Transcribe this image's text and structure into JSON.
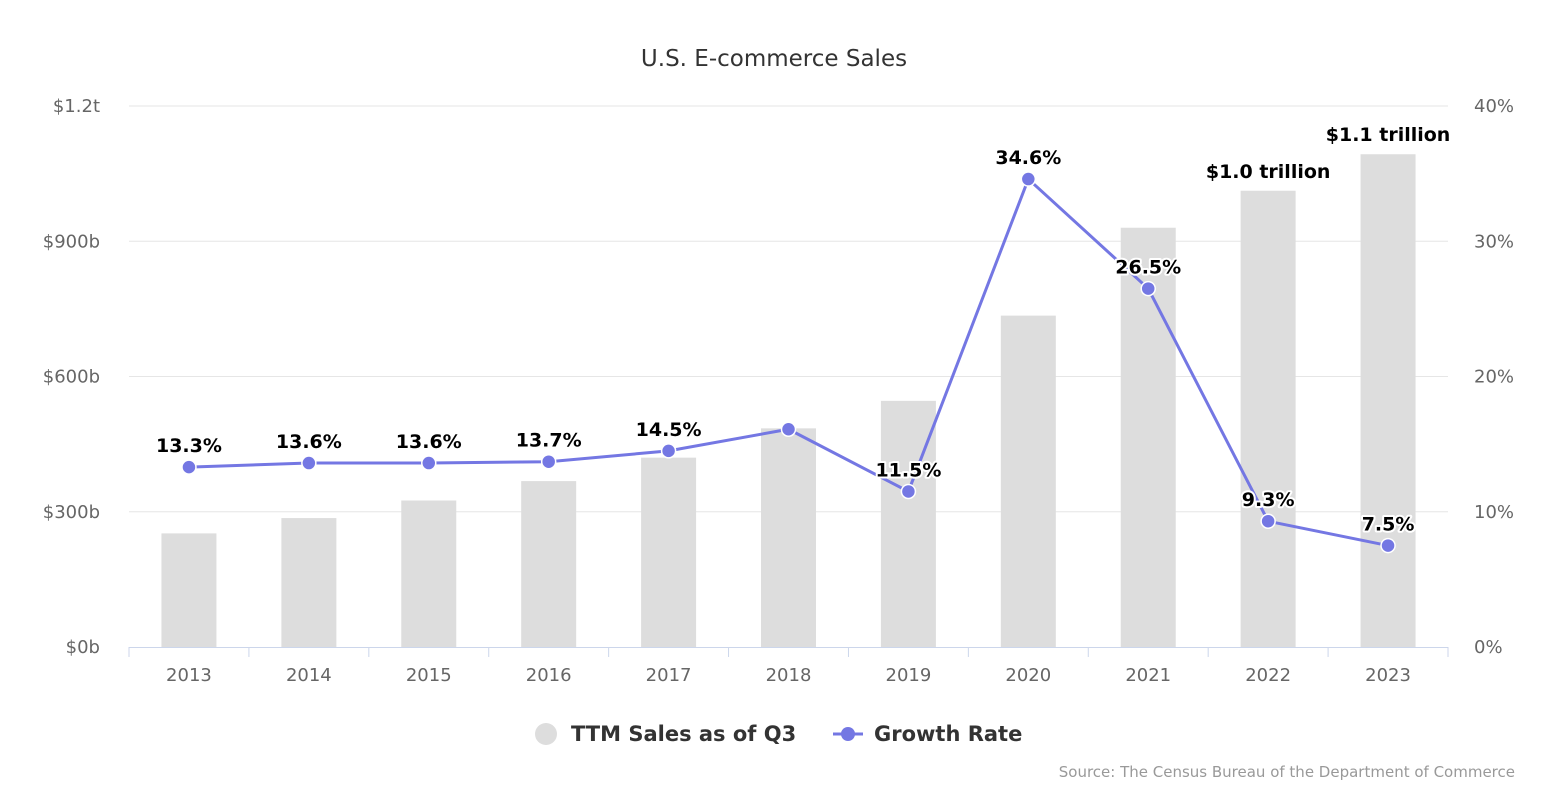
{
  "chart_data": {
    "type": "bar",
    "title": "U.S. E-commerce Sales",
    "categories": [
      "2013",
      "2014",
      "2015",
      "2016",
      "2017",
      "2018",
      "2019",
      "2020",
      "2021",
      "2022",
      "2023"
    ],
    "y_left": {
      "min": 0,
      "max": 1200,
      "ticks": [
        0,
        300,
        600,
        900,
        1200
      ],
      "tick_labels": [
        "$0b",
        "$300b",
        "$600b",
        "$900b",
        "$1.2t"
      ],
      "unit": "billion USD"
    },
    "y_right": {
      "min": 0,
      "max": 40,
      "ticks": [
        0,
        10,
        20,
        30,
        40
      ],
      "tick_labels": [
        "0%",
        "10%",
        "20%",
        "30%",
        "40%"
      ],
      "unit": "percent"
    },
    "grid": true,
    "legend_position": "bottom-center",
    "series": [
      {
        "name": "TTM Sales as of Q3",
        "type": "bar",
        "axis": "left",
        "color": "#dddddd",
        "values": [
          252,
          286,
          325,
          368,
          420,
          485,
          546,
          735,
          930,
          1012,
          1093
        ],
        "data_labels": [
          "",
          "",
          "",
          "",
          "",
          "",
          "",
          "",
          "",
          "$1.0 trillion",
          "$1.1 trillion"
        ]
      },
      {
        "name": "Growth Rate",
        "type": "line",
        "axis": "right",
        "color": "#7477e3",
        "values": [
          13.3,
          13.6,
          13.6,
          13.7,
          14.5,
          16.1,
          11.5,
          34.6,
          26.5,
          9.3,
          7.5
        ],
        "data_labels": [
          "13.3%",
          "13.6%",
          "13.6%",
          "13.7%",
          "14.5%",
          "",
          "11.5%",
          "34.6%",
          "26.5%",
          "9.3%",
          "7.5%"
        ]
      }
    ],
    "source": "Source: The Census Bureau of the Department of Commerce"
  }
}
